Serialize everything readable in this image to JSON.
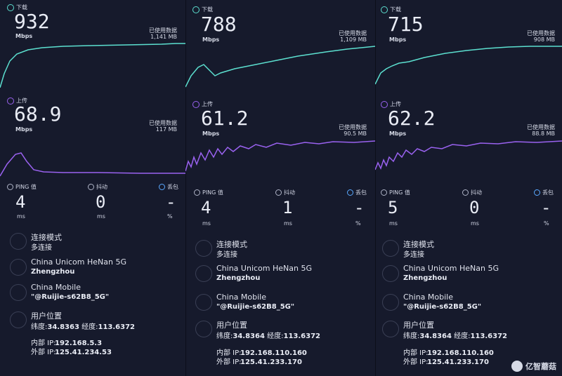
{
  "labels": {
    "download": "下载",
    "upload": "上传",
    "mbps": "Mbps",
    "used_data": "已使用数据",
    "ping": "PING 值",
    "jitter": "抖动",
    "loss": "丢包",
    "ms": "ms",
    "percent": "%",
    "conn_mode": "连接模式",
    "user_location": "用户位置",
    "lat_prefix": "纬度:",
    "lon_prefix": "经度:",
    "internal_ip": "内部 IP:",
    "external_ip": "外部 IP:"
  },
  "colors": {
    "download": "#5ce0d0",
    "upload": "#9a62f0"
  },
  "panels": [
    {
      "download_value": "932",
      "download_used": "1,141 MB",
      "upload_value": "68.9",
      "upload_used": "117 MB",
      "ping": "4",
      "jitter": "0",
      "loss": "-",
      "conn_mode_value": "多连接",
      "isp": "China Unicom HeNan 5G",
      "city": "Zhengzhou",
      "network": "China Mobile",
      "ssid": "\"@Ruijie-s62B8_5G\"",
      "lat": "34.8363",
      "lon": "113.6372",
      "internal_ip": "192.168.5.3",
      "external_ip": "125.41.234.53"
    },
    {
      "download_value": "788",
      "download_used": "1,109 MB",
      "upload_value": "61.2",
      "upload_used": "90.5 MB",
      "ping": "4",
      "jitter": "1",
      "loss": "-",
      "conn_mode_value": "多连接",
      "isp": "China Unicom HeNan 5G",
      "city": "Zhengzhou",
      "network": "China Mobile",
      "ssid": "\"@Ruijie-s62B8_5G\"",
      "lat": "34.8364",
      "lon": "113.6372",
      "internal_ip": "192.168.110.160",
      "external_ip": "125.41.233.170"
    },
    {
      "download_value": "715",
      "download_used": "908 MB",
      "upload_value": "62.2",
      "upload_used": "88.8 MB",
      "ping": "5",
      "jitter": "0",
      "loss": "-",
      "conn_mode_value": "多连接",
      "isp": "China Unicom HeNan 5G",
      "city": "Zhengzhou",
      "network": "China Mobile",
      "ssid": "\"@Ruijie-s62B8_5G\"",
      "lat": "34.8364",
      "lon": "113.6372",
      "internal_ip": "192.168.110.160",
      "external_ip": "125.41.233.170"
    }
  ],
  "watermark": {
    "text": "亿智蘑菇",
    "icon": "mushroom-logo"
  }
}
